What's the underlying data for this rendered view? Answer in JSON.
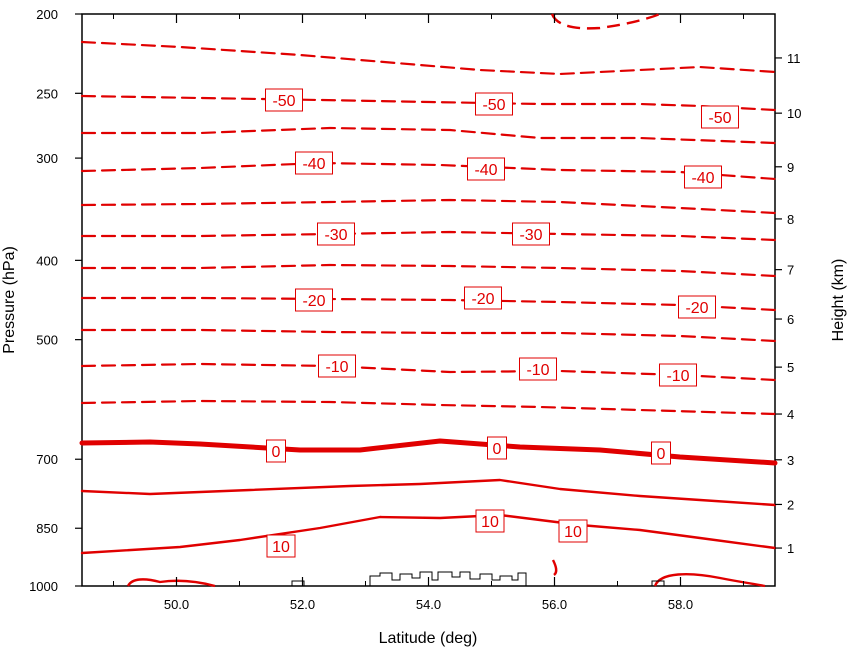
{
  "chart_data": {
    "type": "contour",
    "xlabel": "Latitude (deg)",
    "ylabel_left": "Pressure (hPa)",
    "ylabel_right": "Height (km)",
    "xlim": [
      48.5,
      59.5
    ],
    "ylim_pressure": [
      1000,
      200
    ],
    "x_ticks": [
      50.0,
      52.0,
      54.0,
      56.0,
      58.0
    ],
    "x_tick_labels": [
      "50.0",
      "52.0",
      "54.0",
      "56.0",
      "58.0"
    ],
    "pressure_ticks": [
      200,
      250,
      300,
      400,
      500,
      700,
      850,
      1000
    ],
    "pressure_tick_labels": [
      "200",
      "250",
      "300",
      "400",
      "500",
      "700",
      "850",
      "1000"
    ],
    "height_ticks": [
      1,
      2,
      3,
      4,
      5,
      6,
      7,
      8,
      9,
      10,
      11
    ],
    "height_tick_labels": [
      "1",
      "2",
      "3",
      "4",
      "5",
      "6",
      "7",
      "8",
      "9",
      "10",
      "11"
    ],
    "contour_color": "#e00000",
    "contours": [
      {
        "level": 10,
        "style": "solid",
        "labels": [
          "10",
          "10",
          "10"
        ]
      },
      {
        "level": 0,
        "style": "solid-bold",
        "labels": [
          "0",
          "0",
          "0"
        ]
      },
      {
        "level": -10,
        "style": "dashed",
        "labels": [
          "-10",
          "-10",
          "-10"
        ]
      },
      {
        "level": -20,
        "style": "dashed",
        "labels": [
          "-20",
          "-20",
          "-20"
        ]
      },
      {
        "level": -30,
        "style": "dashed",
        "labels": [
          "-30",
          "-30"
        ]
      },
      {
        "level": -40,
        "style": "dashed",
        "labels": [
          "-40",
          "-40",
          "-40"
        ]
      },
      {
        "level": -50,
        "style": "dashed",
        "labels": [
          "-50",
          "-50",
          "-50"
        ]
      }
    ],
    "terrain_outline": true
  }
}
